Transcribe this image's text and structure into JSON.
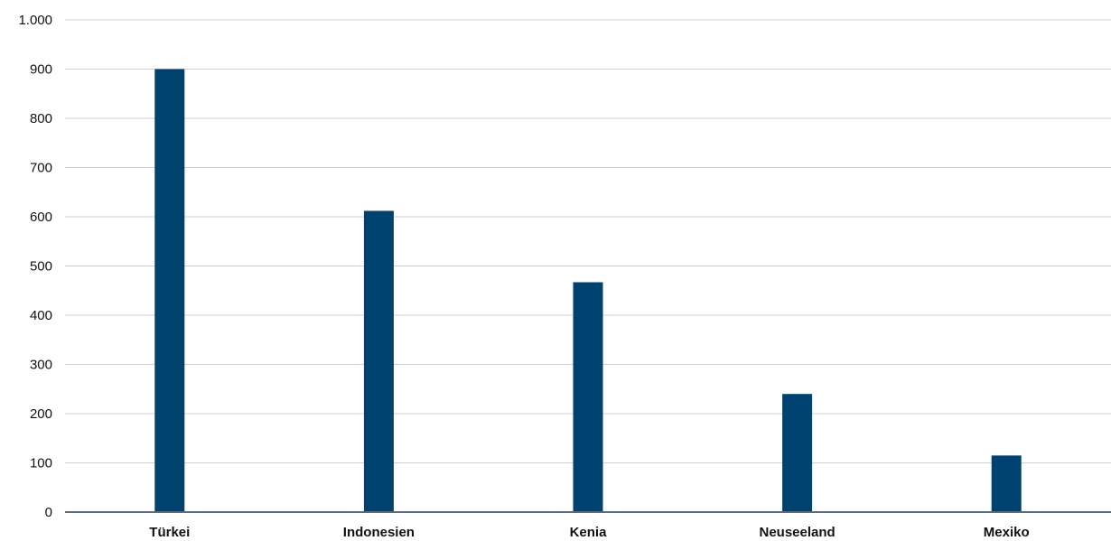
{
  "chart_data": {
    "type": "bar",
    "title": "",
    "xlabel": "",
    "ylabel": "",
    "categories": [
      "Türkei",
      "Indonesien",
      "Kenia",
      "Neuseeland",
      "Mexiko"
    ],
    "values": [
      900,
      612,
      467,
      240,
      115
    ],
    "ylim": [
      0,
      1000
    ],
    "yticks": [
      0,
      100,
      200,
      300,
      400,
      500,
      600,
      700,
      800,
      900,
      1000
    ],
    "ytick_labels": [
      "0",
      "100",
      "200",
      "300",
      "400",
      "500",
      "600",
      "700",
      "800",
      "900",
      "1.000"
    ],
    "grid": true,
    "legend": "none",
    "colors": {
      "bar": "#00426f",
      "grid": "#cfcfcf",
      "axis": "#5b6b78"
    }
  }
}
